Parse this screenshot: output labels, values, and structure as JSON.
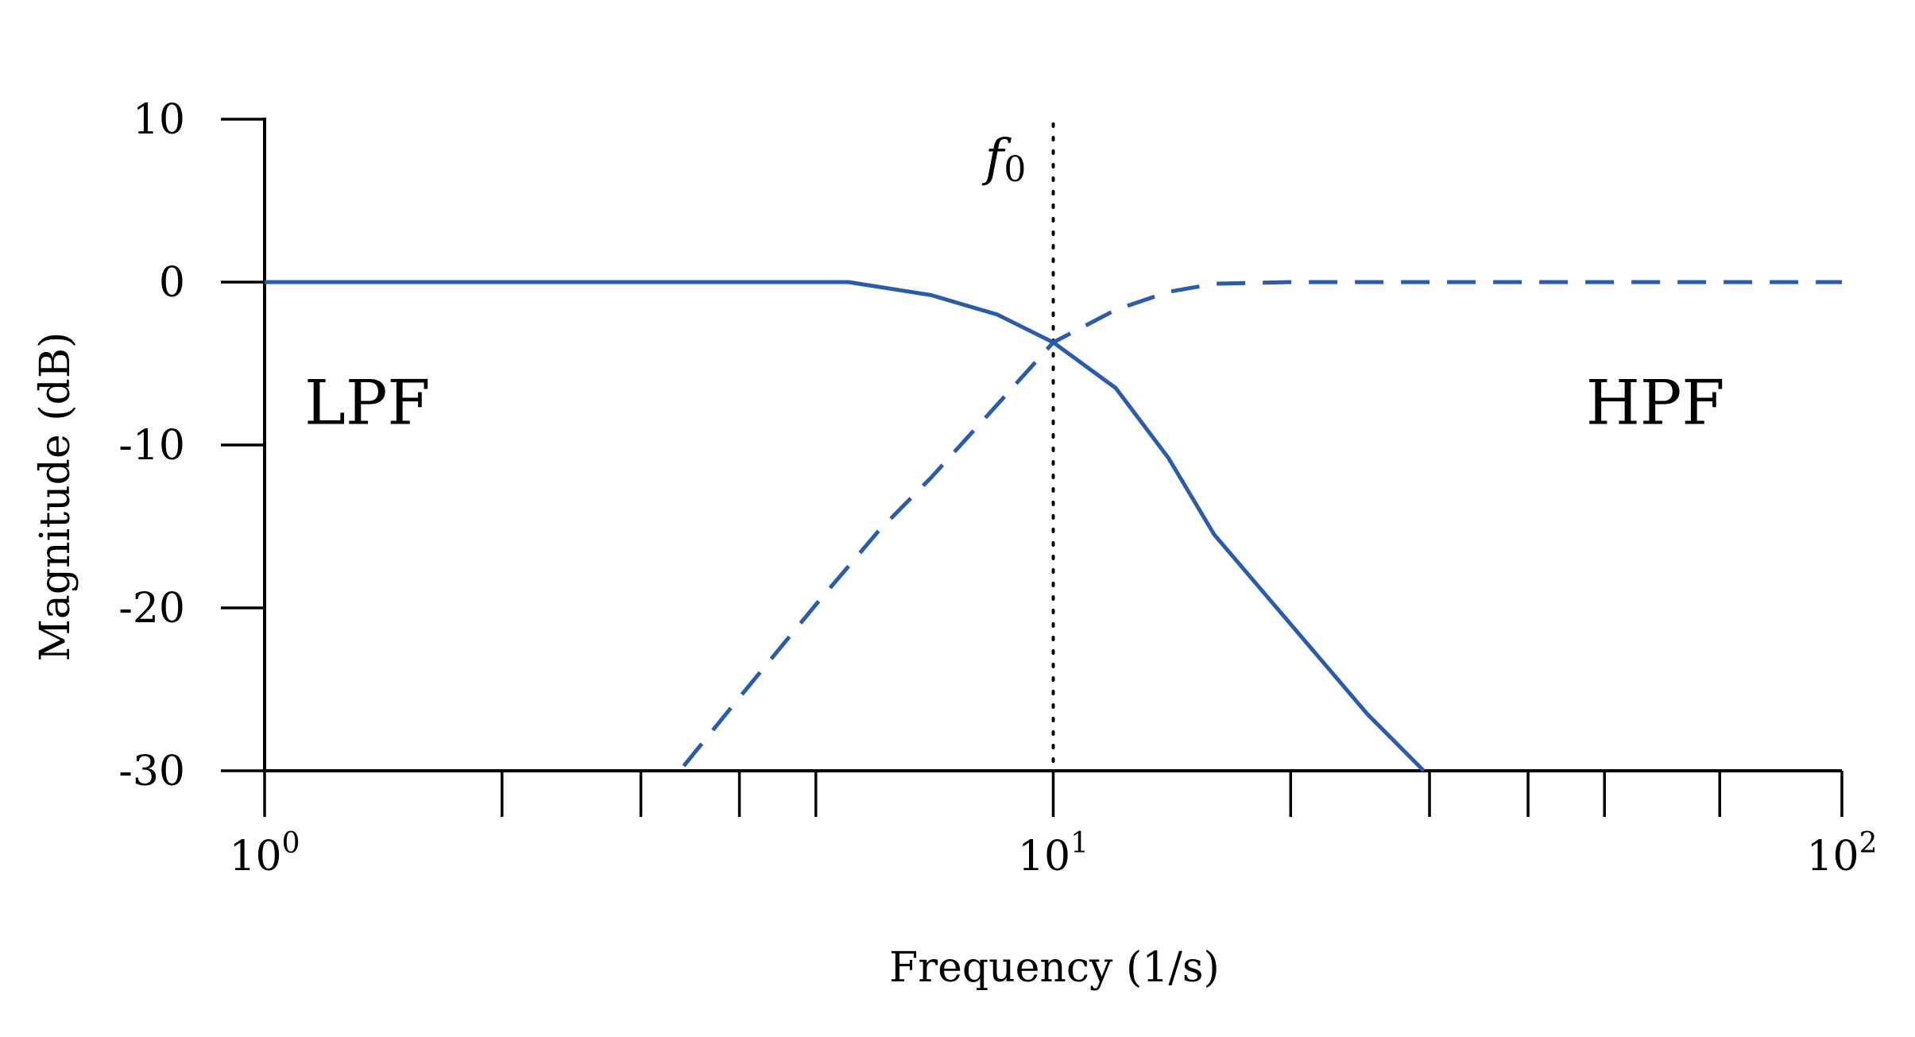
{
  "chart_data": {
    "type": "line",
    "title": "",
    "xlabel": "Frequency (1/s)",
    "ylabel": "Magnitude (dB)",
    "x_scale": "log",
    "xlim": [
      1,
      100
    ],
    "ylim": [
      -30,
      10
    ],
    "x_ticks": [
      {
        "value": 1,
        "base": "10",
        "exp": "0"
      },
      {
        "value": 10,
        "base": "10",
        "exp": "1"
      },
      {
        "value": 100,
        "base": "10",
        "exp": "2"
      }
    ],
    "x_minor_ticks": [
      2,
      3,
      4,
      5,
      20,
      30,
      40,
      50,
      70
    ],
    "y_ticks": [
      10,
      0,
      -10,
      -20,
      -30
    ],
    "y_tick_labels": [
      "10",
      "0",
      "-10",
      "-20",
      "-30"
    ],
    "grid": false,
    "marker": {
      "x": 10,
      "label": "f",
      "subscript": "0",
      "style": "dotted"
    },
    "region_labels": [
      {
        "text": "LPF",
        "x": 1.35,
        "y": -8.7
      },
      {
        "text": "HPF",
        "x": 58,
        "y": -8.7
      }
    ],
    "series": [
      {
        "style": "solid",
        "color": "#2a5caa",
        "x": [
          1,
          2,
          3,
          5.5,
          7,
          8.5,
          10,
          12,
          14,
          16,
          20,
          25,
          29.5
        ],
        "y": [
          0,
          0,
          0,
          0,
          -0.8,
          -2,
          -3.7,
          -6.5,
          -10.8,
          -15.5,
          -21,
          -26.5,
          -30
        ]
      },
      {
        "style": "dashed",
        "color": "#2a5caa",
        "x": [
          3.4,
          4,
          5,
          6,
          7,
          8.5,
          10,
          12,
          14,
          16,
          20,
          30,
          50,
          100
        ],
        "y": [
          -29.7,
          -25.5,
          -19.8,
          -15.3,
          -12,
          -7.5,
          -3.7,
          -1.7,
          -0.6,
          -0.1,
          0,
          0,
          0,
          0
        ]
      }
    ]
  }
}
